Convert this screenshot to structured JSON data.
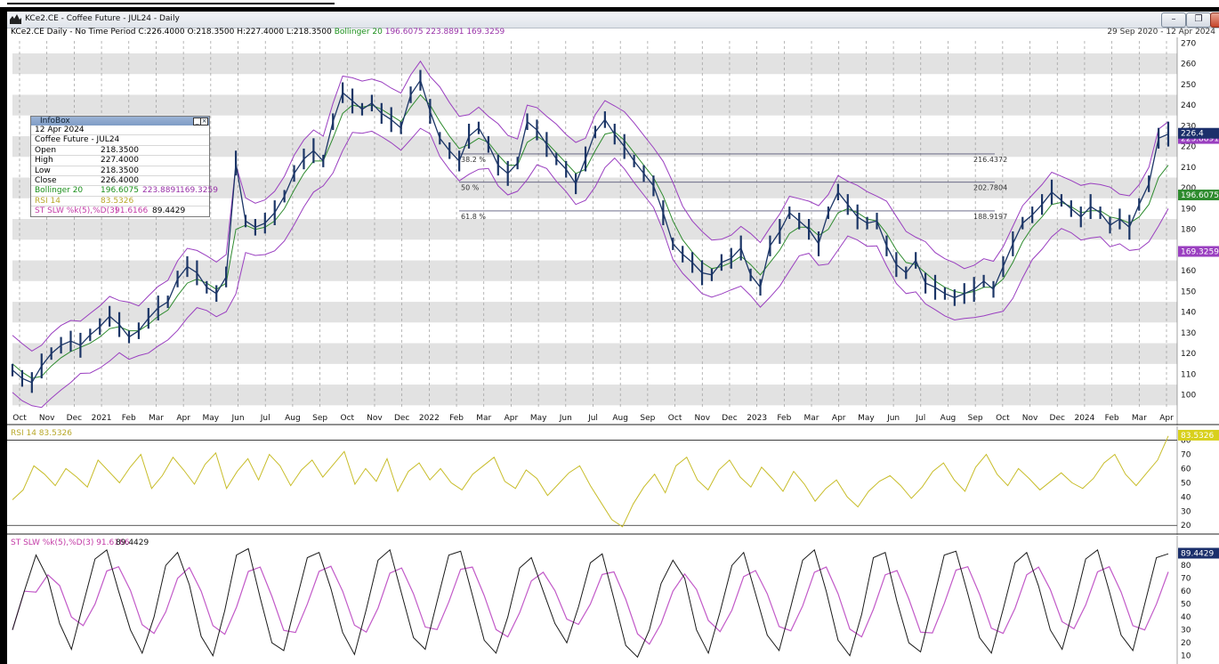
{
  "window": {
    "title": "KCe2.CE - Coffee Future - JUL24 - Daily",
    "buttons": {
      "minimize": "–",
      "restore": "❐",
      "close": "✕"
    }
  },
  "status": {
    "symbol_info": "KCe2.CE Daily - No Time Period",
    "ohlc": "C:226.4000 O:218.3500 H:227.4000 L:218.3500",
    "bollinger_label": "Bollinger 20",
    "bollinger_values": "196.6075 223.8891 169.3259",
    "date_range": "29 Sep 2020 - 12 Apr 2024"
  },
  "infobox": {
    "title": "InfoBox",
    "date": "12 Apr 2024",
    "instrument": "Coffee Future - JUL24",
    "rows": [
      {
        "label": "Open",
        "value": "218.3500"
      },
      {
        "label": "High",
        "value": "227.4000"
      },
      {
        "label": "Low",
        "value": "218.3500"
      },
      {
        "label": "Close",
        "value": "226.4000"
      }
    ],
    "bollinger": {
      "label": "Bollinger 20",
      "v1": "196.6075",
      "v2": "223.8891",
      "v3": "169.3259"
    },
    "rsi": {
      "label": "RSI 14",
      "value": "83.5326"
    },
    "stoch": {
      "label": "ST SLW %k(5),%D(3)",
      "v1": "91.6166",
      "v2": "89.4429"
    }
  },
  "rsi_panel_label": "RSI 14  83.5326",
  "stoch_panel_label": "ST SLW %k(5),%D(3)  91.6166",
  "stoch_panel_label2": "89.4429",
  "price_tags": {
    "last": "226.4",
    "bb_upper": "223.8891",
    "bb_mid": "196.6075",
    "bb_lower": "169.3259",
    "rsi": "83.5326",
    "stoch": "89.4429"
  },
  "colors": {
    "price": "#1b3566",
    "bb_bands": "#9a3fc0",
    "bb_mid": "#2e8b2e",
    "rsi": "#c8bd2a",
    "stoch_k": "#1a1a1a",
    "stoch_d": "#c25ac8",
    "stripe": "#e2e2e2"
  },
  "fib": [
    {
      "label": "38.2 %",
      "value": "216.4372",
      "level": 216.4372
    },
    {
      "label": "50 %",
      "value": "202.7804",
      "level": 202.7804
    },
    {
      "label": "61.8 %",
      "value": "188.9197",
      "level": 188.9197
    }
  ],
  "chart_data": {
    "type": "line",
    "title": "KCe2.CE - Coffee Future - JUL24 - Daily",
    "x_ticks": [
      "Oct",
      "Nov",
      "Dec",
      "2021",
      "Feb",
      "Mar",
      "Apr",
      "May",
      "Jun",
      "Jul",
      "Aug",
      "Sep",
      "Oct",
      "Nov",
      "Dec",
      "2022",
      "Feb",
      "Mar",
      "Apr",
      "May",
      "Jun",
      "Jul",
      "Aug",
      "Sep",
      "Oct",
      "Nov",
      "Dec",
      "2023",
      "Feb",
      "Mar",
      "Apr",
      "May",
      "Jun",
      "Jul",
      "Aug",
      "Sep",
      "Oct",
      "Nov",
      "Dec",
      "2024",
      "Feb",
      "Mar",
      "Apr"
    ],
    "price_axis": {
      "ticks": [
        100,
        110,
        120,
        130,
        140,
        150,
        160,
        170,
        180,
        190,
        200,
        210,
        220,
        230,
        240,
        250,
        260,
        270
      ],
      "ylim": [
        93,
        271
      ]
    },
    "rsi_axis": {
      "ticks": [
        20,
        30,
        40,
        50,
        60,
        70,
        80
      ],
      "ylim": [
        17,
        86
      ]
    },
    "stoch_axis": {
      "ticks": [
        10,
        20,
        30,
        40,
        50,
        60,
        70,
        80
      ],
      "ylim": [
        5,
        96
      ]
    },
    "series": [
      {
        "name": "Close",
        "values": [
          112,
          108,
          106,
          114,
          120,
          124,
          126,
          124,
          129,
          133,
          138,
          134,
          128,
          131,
          137,
          142,
          145,
          156,
          162,
          159,
          152,
          149,
          157,
          212,
          184,
          181,
          183,
          188,
          196,
          207,
          214,
          218,
          213,
          232,
          246,
          242,
          238,
          241,
          236,
          233,
          229,
          245,
          252,
          237,
          224,
          218,
          213,
          225,
          229,
          221,
          211,
          207,
          212,
          232,
          228,
          221,
          214,
          209,
          202,
          214,
          227,
          233,
          226,
          220,
          213,
          207,
          201,
          188,
          173,
          168,
          164,
          159,
          158,
          164,
          166,
          171,
          158,
          152,
          172,
          179,
          188,
          184,
          180,
          173,
          188,
          198,
          192,
          186,
          183,
          184,
          172,
          163,
          159,
          165,
          154,
          152,
          149,
          147,
          149,
          151,
          155,
          151,
          162,
          173,
          183,
          187,
          192,
          198,
          194,
          190,
          186,
          191,
          188,
          182,
          185,
          181,
          192,
          202,
          224,
          226
        ]
      },
      {
        "name": "Bollinger 20",
        "values": [
          115,
          111,
          108,
          109,
          114,
          118,
          121,
          123,
          125,
          128,
          132,
          133,
          131,
          131,
          134,
          138,
          141,
          148,
          154,
          156,
          154,
          151,
          154,
          180,
          182,
          180,
          181,
          184,
          190,
          199,
          207,
          213,
          213,
          224,
          236,
          240,
          239,
          240,
          238,
          235,
          232,
          239,
          245,
          240,
          232,
          225,
          219,
          221,
          224,
          222,
          216,
          211,
          211,
          222,
          225,
          222,
          217,
          212,
          207,
          209,
          218,
          226,
          227,
          223,
          217,
          211,
          205,
          196,
          184,
          175,
          169,
          164,
          161,
          162,
          164,
          167,
          163,
          158,
          164,
          170,
          178,
          181,
          181,
          177,
          180,
          188,
          190,
          188,
          185,
          184,
          178,
          170,
          164,
          163,
          159,
          155,
          152,
          150,
          149,
          150,
          152,
          152,
          156,
          164,
          174,
          181,
          186,
          192,
          193,
          191,
          188,
          189,
          189,
          186,
          185,
          183,
          186,
          192,
          205,
          211
        ]
      },
      {
        "name": "RSI 14",
        "values": [
          38,
          45,
          62,
          56,
          48,
          60,
          54,
          47,
          66,
          58,
          50,
          61,
          70,
          46,
          55,
          68,
          59,
          49,
          63,
          71,
          46,
          58,
          67,
          52,
          70,
          62,
          48,
          59,
          66,
          54,
          63,
          72,
          49,
          60,
          51,
          67,
          44,
          58,
          64,
          52,
          60,
          50,
          45,
          56,
          62,
          68,
          51,
          46,
          59,
          53,
          41,
          49,
          57,
          62,
          48,
          36,
          24,
          19,
          35,
          47,
          56,
          43,
          62,
          68,
          52,
          45,
          59,
          66,
          54,
          47,
          61,
          53,
          44,
          58,
          49,
          37,
          46,
          52,
          40,
          33,
          44,
          51,
          55,
          48,
          39,
          47,
          58,
          64,
          52,
          44,
          61,
          70,
          56,
          48,
          60,
          53,
          45,
          51,
          57,
          50,
          46,
          53,
          64,
          70,
          56,
          48,
          57,
          66,
          83
        ]
      },
      {
        "name": "ST SLW %k(5),%D(3)",
        "values": [
          30,
          60,
          88,
          70,
          35,
          15,
          50,
          85,
          92,
          60,
          30,
          12,
          40,
          80,
          90,
          65,
          25,
          10,
          45,
          88,
          93,
          55,
          20,
          14,
          50,
          86,
          90,
          62,
          28,
          11,
          46,
          84,
          92,
          58,
          24,
          15,
          52,
          88,
          91,
          57,
          22,
          12,
          40,
          78,
          86,
          60,
          35,
          20,
          48,
          82,
          89,
          54,
          18,
          9,
          30,
          66,
          84,
          70,
          30,
          12,
          44,
          80,
          90,
          58,
          26,
          14,
          48,
          84,
          92,
          60,
          22,
          10,
          42,
          86,
          90,
          52,
          20,
          13,
          50,
          88,
          91,
          58,
          24,
          12,
          46,
          82,
          90,
          64,
          30,
          15,
          48,
          85,
          92,
          60,
          26,
          14,
          50,
          86,
          89
        ]
      }
    ]
  }
}
